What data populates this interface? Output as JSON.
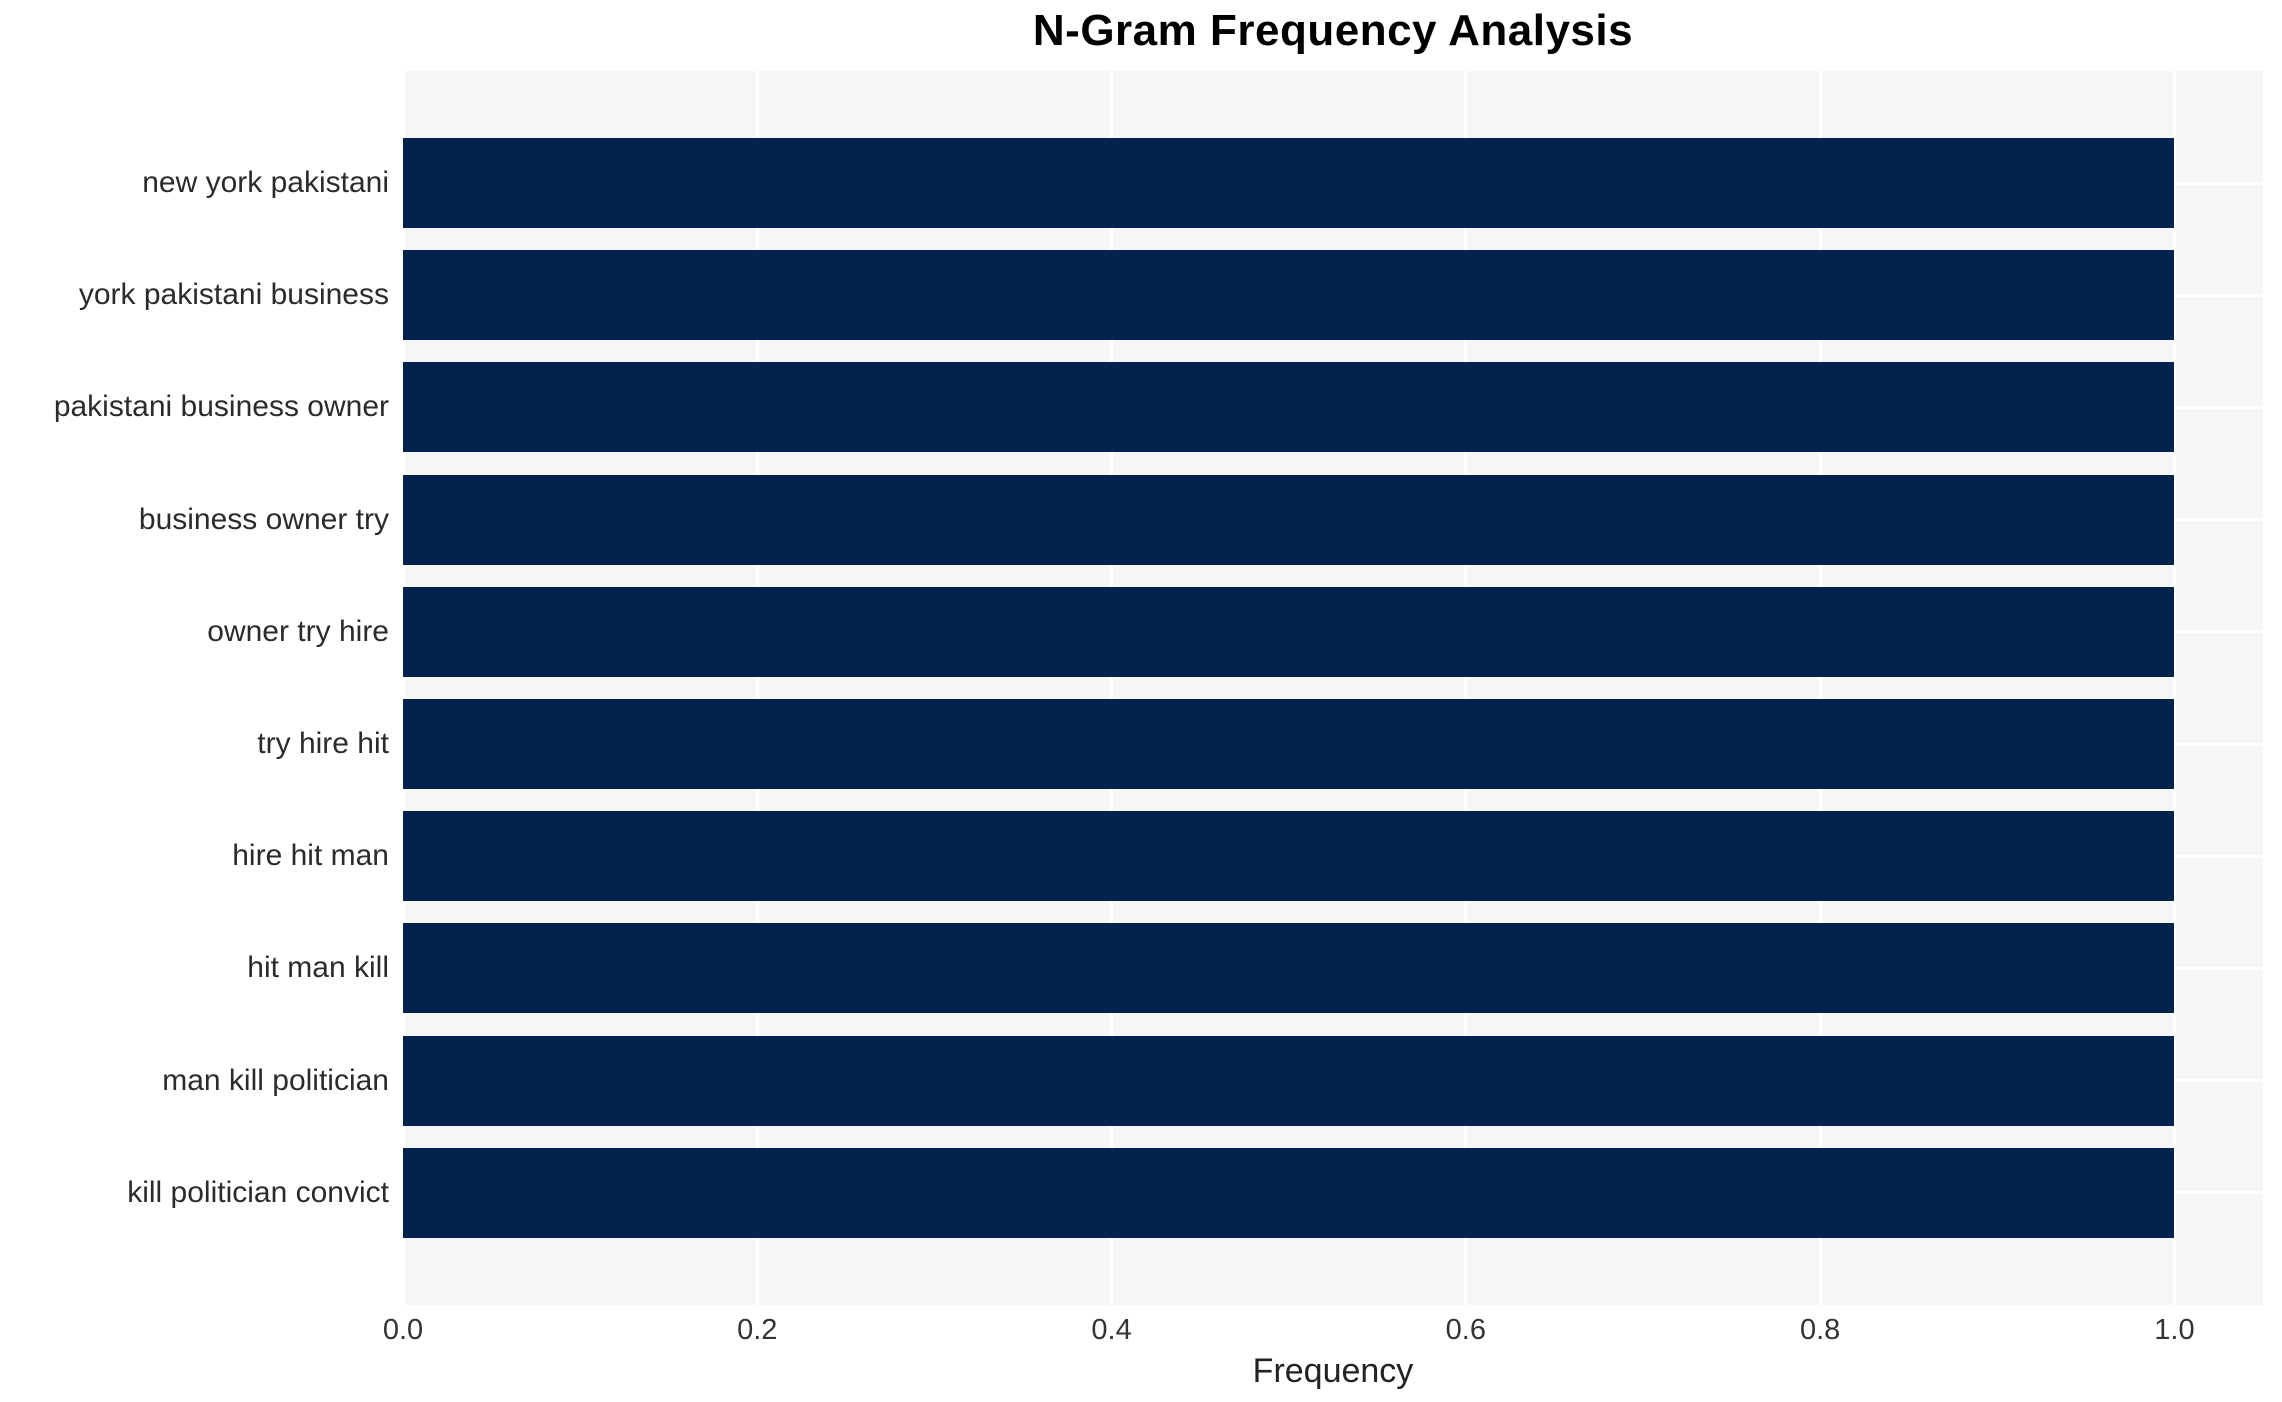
{
  "title": "N-Gram Frequency Analysis",
  "xlabel": "Frequency",
  "chart_data": {
    "type": "bar",
    "orientation": "horizontal",
    "title": "N-Gram Frequency Analysis",
    "xlabel": "Frequency",
    "ylabel": "",
    "categories": [
      "new york pakistani",
      "york pakistani business",
      "pakistani business owner",
      "business owner try",
      "owner try hire",
      "try hire hit",
      "hire hit man",
      "hit man kill",
      "man kill politician",
      "kill politician convict"
    ],
    "values": [
      1.0,
      1.0,
      1.0,
      1.0,
      1.0,
      1.0,
      1.0,
      1.0,
      1.0,
      1.0
    ],
    "xlim": [
      0,
      1.05
    ],
    "xticks": [
      0.0,
      0.2,
      0.4,
      0.6,
      0.8,
      1.0
    ],
    "xtick_labels": [
      "0.0",
      "0.2",
      "0.4",
      "0.6",
      "0.8",
      "1.0"
    ],
    "grid": true,
    "legend": false,
    "colors": {
      "bar": "#01234d",
      "plot_background": "#f6f6f7",
      "gridline": "#ffffff",
      "text": "#2b2b2b",
      "title": "#000000"
    }
  }
}
